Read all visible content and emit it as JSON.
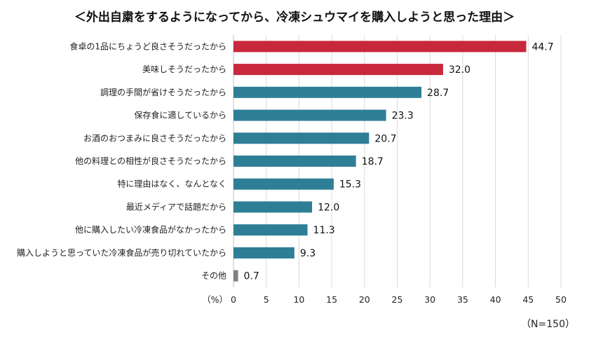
{
  "chart_data": {
    "type": "bar",
    "orientation": "horizontal",
    "title": "＜外出自粛をするようになってから、冷凍シュウマイを購入しようと思った理由＞",
    "categories": [
      "食卓の1品にちょうど良さそうだったから",
      "美味しそうだったから",
      "調理の手間が省けそうだったから",
      "保存食に適しているから",
      "お酒のおつまみに良さそうだったから",
      "他の料理との相性が良さそうだったから",
      "特に理由はなく、なんとなく",
      "最近メディアで話題だから",
      "他に購入したい冷凍食品がなかったから",
      "購入しようと思っていた冷凍食品が売り切れていたから",
      "その他"
    ],
    "values": [
      44.7,
      32.0,
      28.7,
      23.3,
      20.7,
      18.7,
      15.3,
      12.0,
      11.3,
      9.3,
      0.7
    ],
    "value_labels": [
      "44.7",
      "32.0",
      "28.7",
      "23.3",
      "20.7",
      "18.7",
      "15.3",
      "12.0",
      "11.3",
      "9.3",
      "0.7"
    ],
    "xlim": [
      0,
      50
    ],
    "x_ticks": [
      0,
      5,
      10,
      15,
      20,
      25,
      30,
      35,
      40,
      45,
      50
    ],
    "x_unit": "（%）",
    "grid": "vertical",
    "bar_colors": [
      "#c8283c",
      "#c8283c",
      "#2e7f96",
      "#2e7f96",
      "#2e7f96",
      "#2e7f96",
      "#2e7f96",
      "#2e7f96",
      "#2e7f96",
      "#2e7f96",
      "#808080"
    ],
    "note": "（N=150）"
  }
}
